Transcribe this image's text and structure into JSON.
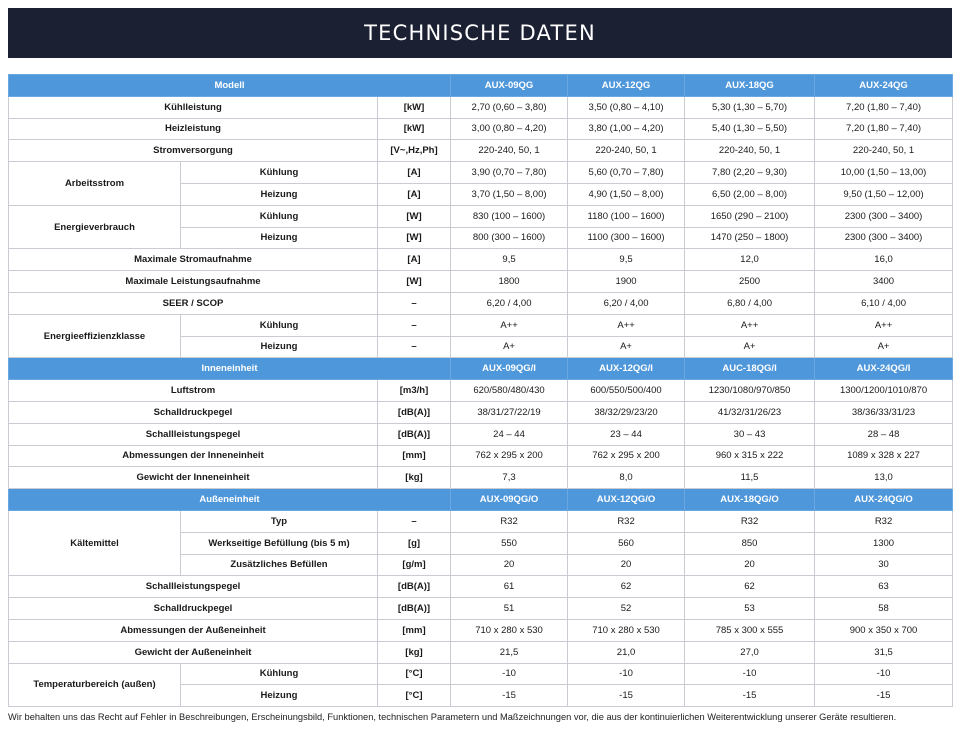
{
  "title": "TECHNISCHE DATEN",
  "sections": [
    {
      "header": [
        "Modell",
        "AUX-09QG",
        "AUX-12QG",
        "AUX-18QG",
        "AUX-24QG"
      ],
      "rows": [
        {
          "label": "Kühlleistung",
          "unit": "[kW]",
          "values": [
            "2,70 (0,60 – 3,80)",
            "3,50 (0,80 – 4,10)",
            "5,30 (1,30 – 5,70)",
            "7,20 (1,80 – 7,40)"
          ]
        },
        {
          "label": "Heizleistung",
          "unit": "[kW]",
          "values": [
            "3,00 (0,80 – 4,20)",
            "3,80 (1,00 – 4,20)",
            "5,40 (1,30 – 5,50)",
            "7,20 (1,80 – 7,40)"
          ]
        },
        {
          "label": "Stromversorgung",
          "unit": "[V~,Hz,Ph]",
          "values": [
            "220-240, 50, 1",
            "220-240, 50, 1",
            "220-240, 50, 1",
            "220-240, 50, 1"
          ]
        },
        {
          "group": "Arbeitsstrom",
          "label": "Kühlung",
          "unit": "[A]",
          "values": [
            "3,90 (0,70 – 7,80)",
            "5,60 (0,70 – 7,80)",
            "7,80 (2,20 – 9,30)",
            "10,00 (1,50 – 13,00)"
          ]
        },
        {
          "label": "Heizung",
          "unit": "[A]",
          "values": [
            "3,70 (1,50 – 8,00)",
            "4,90 (1,50 – 8,00)",
            "6,50 (2,00 – 8,00)",
            "9,50 (1,50 – 12,00)"
          ]
        },
        {
          "group": "Energieverbrauch",
          "label": "Kühlung",
          "unit": "[W]",
          "values": [
            "830 (100 – 1600)",
            "1180 (100 – 1600)",
            "1650 (290 – 2100)",
            "2300 (300 – 3400)"
          ]
        },
        {
          "label": "Heizung",
          "unit": "[W]",
          "values": [
            "800 (300 – 1600)",
            "1100 (300 – 1600)",
            "1470 (250 – 1800)",
            "2300 (300 – 3400)"
          ]
        },
        {
          "label": "Maximale Stromaufnahme",
          "unit": "[A]",
          "values": [
            "9,5",
            "9,5",
            "12,0",
            "16,0"
          ]
        },
        {
          "label": "Maximale Leistungsaufnahme",
          "unit": "[W]",
          "values": [
            "1800",
            "1900",
            "2500",
            "3400"
          ]
        },
        {
          "label": "SEER / SCOP",
          "unit": "–",
          "values": [
            "6,20 / 4,00",
            "6,20 / 4,00",
            "6,80 / 4,00",
            "6,10 / 4,00"
          ]
        },
        {
          "group": "Energieeffizienzklasse",
          "label": "Kühlung",
          "unit": "–",
          "values": [
            "A++",
            "A++",
            "A++",
            "A++"
          ]
        },
        {
          "label": "Heizung",
          "unit": "–",
          "values": [
            "A+",
            "A+",
            "A+",
            "A+"
          ]
        }
      ]
    },
    {
      "header": [
        "Inneneinheit",
        "AUX-09QG/I",
        "AUX-12QG/I",
        "AUC-18QG/I",
        "AUX-24QG/I"
      ],
      "rows": [
        {
          "label": "Luftstrom",
          "unit": "[m3/h]",
          "values": [
            "620/580/480/430",
            "600/550/500/400",
            "1230/1080/970/850",
            "1300/1200/1010/870"
          ]
        },
        {
          "label": "Schalldruckpegel",
          "unit": "[dB(A)]",
          "values": [
            "38/31/27/22/19",
            "38/32/29/23/20",
            "41/32/31/26/23",
            "38/36/33/31/23"
          ]
        },
        {
          "label": "Schallleistungspegel",
          "unit": "[dB(A)]",
          "values": [
            "24 – 44",
            "23 – 44",
            "30 – 43",
            "28 – 48"
          ]
        },
        {
          "label": "Abmessungen der Inneneinheit",
          "unit": "[mm]",
          "values": [
            "762 x 295 x 200",
            "762 x 295 x 200",
            "960 x 315 x 222",
            "1089 x 328 x 227"
          ]
        },
        {
          "label": "Gewicht der Inneneinheit",
          "unit": "[kg]",
          "values": [
            "7,3",
            "8,0",
            "11,5",
            "13,0"
          ]
        }
      ]
    },
    {
      "header": [
        "Außeneinheit",
        "AUX-09QG/O",
        "AUX-12QG/O",
        "AUX-18QG/O",
        "AUX-24QG/O"
      ],
      "rows": [
        {
          "group": "Kältemittel",
          "label": "Typ",
          "unit": "–",
          "values": [
            "R32",
            "R32",
            "R32",
            "R32"
          ]
        },
        {
          "label": "Werkseitige Befüllung (bis 5 m)",
          "unit": "[g]",
          "values": [
            "550",
            "560",
            "850",
            "1300"
          ]
        },
        {
          "label": "Zusätzliches Befüllen",
          "unit": "[g/m]",
          "values": [
            "20",
            "20",
            "20",
            "30"
          ]
        },
        {
          "label": "Schallleistungspegel",
          "unit": "[dB(A)]",
          "values": [
            "61",
            "62",
            "62",
            "63"
          ]
        },
        {
          "label": "Schalldruckpegel",
          "unit": "[dB(A)]",
          "values": [
            "51",
            "52",
            "53",
            "58"
          ]
        },
        {
          "label": "Abmessungen der Außeneinheit",
          "unit": "[mm]",
          "values": [
            "710 x 280 x 530",
            "710 x 280 x 530",
            "785 x 300 x 555",
            "900 x 350 x 700"
          ]
        },
        {
          "label": "Gewicht der Außeneinheit",
          "unit": "[kg]",
          "values": [
            "21,5",
            "21,0",
            "27,0",
            "31,5"
          ]
        },
        {
          "group": "Temperaturbereich (außen)",
          "label": "Kühlung",
          "unit": "[°C]",
          "values": [
            "-10",
            "-10",
            "-10",
            "-10"
          ]
        },
        {
          "label": "Heizung",
          "unit": "[°C]",
          "values": [
            "-15",
            "-15",
            "-15",
            "-15"
          ]
        }
      ]
    }
  ],
  "footnote": "Wir behalten uns das Recht auf Fehler in Beschreibungen, Erscheinungsbild, Funktionen, technischen Parametern und Maßzeichnungen vor, die aus der kontinuierlichen Weiterentwicklung unserer Geräte resultieren."
}
